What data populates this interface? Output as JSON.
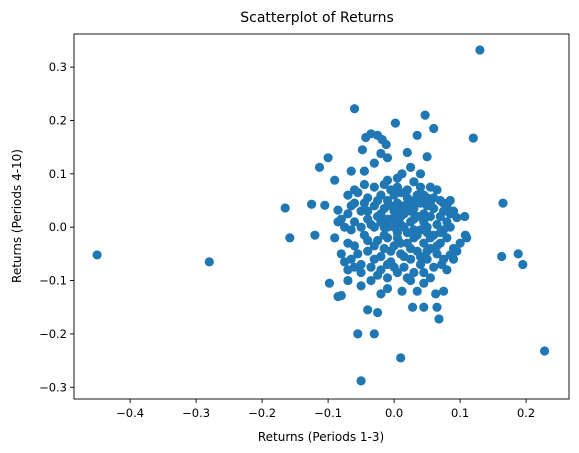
{
  "chart_data": {
    "type": "scatter",
    "title": "Scatterplot of Returns",
    "xlabel": "Returns (Periods 1-3)",
    "ylabel": "Returns (Periods 4-10)",
    "xlim": [
      -0.485,
      0.265
    ],
    "ylim": [
      -0.322,
      0.362
    ],
    "xticks": [
      -0.4,
      -0.3,
      -0.2,
      -0.1,
      0.0,
      0.1,
      0.2
    ],
    "yticks": [
      -0.3,
      -0.2,
      -0.1,
      0.0,
      0.1,
      0.2,
      0.3
    ],
    "xtick_labels": [
      "−0.4",
      "−0.3",
      "−0.2",
      "−0.1",
      "0.0",
      "0.1",
      "0.2"
    ],
    "ytick_labels": [
      "−0.3",
      "−0.2",
      "−0.1",
      "0.0",
      "0.1",
      "0.2",
      "0.3"
    ],
    "grid": false,
    "marker_color": "#1f77b4",
    "points": [
      [
        -0.45,
        -0.052
      ],
      [
        -0.28,
        -0.065
      ],
      [
        -0.165,
        0.036
      ],
      [
        -0.158,
        -0.02
      ],
      [
        0.13,
        0.332
      ],
      [
        0.228,
        -0.232
      ],
      [
        0.165,
        0.045
      ],
      [
        0.163,
        -0.055
      ],
      [
        0.188,
        -0.05
      ],
      [
        0.195,
        -0.07
      ],
      [
        0.12,
        0.167
      ],
      [
        0.108,
        -0.015
      ],
      [
        0.107,
        0.02
      ],
      [
        0.11,
        -0.02
      ],
      [
        -0.06,
        0.222
      ],
      [
        0.047,
        0.21
      ],
      [
        0.002,
        0.195
      ],
      [
        0.06,
        0.185
      ],
      [
        -0.043,
        0.168
      ],
      [
        -0.025,
        0.172
      ],
      [
        -0.035,
        0.175
      ],
      [
        -0.018,
        0.164
      ],
      [
        -0.012,
        0.155
      ],
      [
        0.035,
        0.172
      ],
      [
        -0.048,
        0.145
      ],
      [
        -0.02,
        0.138
      ],
      [
        -0.01,
        0.13
      ],
      [
        0.02,
        0.14
      ],
      [
        0.05,
        0.132
      ],
      [
        -0.1,
        0.13
      ],
      [
        -0.113,
        0.112
      ],
      [
        -0.045,
        0.105
      ],
      [
        0.025,
        0.112
      ],
      [
        -0.03,
        0.12
      ],
      [
        0.012,
        0.1
      ],
      [
        -0.065,
        0.105
      ],
      [
        0.04,
        0.1
      ],
      [
        -0.09,
        0.088
      ],
      [
        -0.01,
        0.088
      ],
      [
        0.005,
        0.092
      ],
      [
        0.03,
        0.085
      ],
      [
        -0.125,
        0.043
      ],
      [
        -0.105,
        0.041
      ],
      [
        -0.085,
        0.032
      ],
      [
        -0.12,
        -0.015
      ],
      [
        -0.098,
        -0.105
      ],
      [
        -0.085,
        -0.13
      ],
      [
        -0.08,
        -0.128
      ],
      [
        -0.07,
        -0.1
      ],
      [
        -0.055,
        -0.2
      ],
      [
        -0.05,
        -0.11
      ],
      [
        -0.04,
        -0.155
      ],
      [
        -0.03,
        -0.2
      ],
      [
        -0.025,
        -0.16
      ],
      [
        -0.02,
        -0.125
      ],
      [
        -0.01,
        -0.115
      ],
      [
        0.01,
        -0.245
      ],
      [
        -0.05,
        -0.288
      ],
      [
        0.012,
        -0.12
      ],
      [
        0.025,
        -0.1
      ],
      [
        0.035,
        -0.12
      ],
      [
        0.045,
        -0.105
      ],
      [
        0.045,
        -0.15
      ],
      [
        0.028,
        -0.15
      ],
      [
        0.065,
        -0.15
      ],
      [
        0.068,
        -0.172
      ],
      [
        0.063,
        -0.125
      ],
      [
        0.055,
        -0.095
      ],
      [
        0.075,
        -0.12
      ],
      [
        0.08,
        -0.08
      ],
      [
        0.085,
        -0.052
      ],
      [
        0.09,
        -0.04
      ],
      [
        0.09,
        -0.06
      ],
      [
        0.072,
        -0.07
      ],
      [
        0.08,
        0.04
      ],
      [
        0.085,
        0.025
      ],
      [
        0.095,
        0.018
      ],
      [
        0.07,
        0.05
      ],
      [
        0.055,
        0.075
      ],
      [
        0.065,
        0.07
      ],
      [
        0.045,
        0.06
      ],
      [
        -0.07,
        -0.08
      ],
      [
        -0.07,
        0.025
      ],
      [
        -0.07,
        -0.03
      ],
      [
        -0.065,
        -0.06
      ],
      [
        -0.06,
        -0.035
      ],
      [
        -0.06,
        0.01
      ],
      [
        -0.06,
        0.045
      ],
      [
        -0.055,
        0.065
      ],
      [
        -0.05,
        -0.07
      ],
      [
        -0.05,
        0.03
      ],
      [
        -0.045,
        -0.015
      ],
      [
        -0.045,
        0.08
      ],
      [
        -0.04,
        -0.045
      ],
      [
        -0.04,
        0.055
      ],
      [
        -0.035,
        -0.1
      ],
      [
        -0.035,
        0.005
      ],
      [
        -0.03,
        -0.06
      ],
      [
        -0.03,
        0.04
      ],
      [
        -0.03,
        0.075
      ],
      [
        -0.025,
        -0.025
      ],
      [
        -0.025,
        0.02
      ],
      [
        -0.02,
        -0.08
      ],
      [
        -0.02,
        0.06
      ],
      [
        -0.015,
        -0.04
      ],
      [
        -0.015,
        0.0
      ],
      [
        -0.015,
        0.035
      ],
      [
        -0.01,
        -0.095
      ],
      [
        -0.01,
        -0.02
      ],
      [
        -0.01,
        0.05
      ],
      [
        -0.005,
        -0.065
      ],
      [
        -0.005,
        0.015
      ],
      [
        -0.005,
        0.07
      ],
      [
        0.0,
        -0.035
      ],
      [
        0.0,
        0.03
      ],
      [
        0.005,
        -0.085
      ],
      [
        0.005,
        -0.01
      ],
      [
        0.005,
        0.045
      ],
      [
        0.01,
        -0.05
      ],
      [
        0.01,
        0.02
      ],
      [
        0.01,
        0.065
      ],
      [
        0.015,
        -0.075
      ],
      [
        0.015,
        0.0
      ],
      [
        0.015,
        0.04
      ],
      [
        0.02,
        -0.03
      ],
      [
        0.02,
        0.055
      ],
      [
        0.025,
        -0.06
      ],
      [
        0.025,
        0.01
      ],
      [
        0.03,
        -0.085
      ],
      [
        0.03,
        -0.02
      ],
      [
        0.03,
        0.035
      ],
      [
        0.035,
        -0.045
      ],
      [
        0.035,
        0.02
      ],
      [
        0.035,
        0.06
      ],
      [
        0.04,
        -0.07
      ],
      [
        0.04,
        -0.005
      ],
      [
        0.04,
        0.045
      ],
      [
        0.045,
        -0.03
      ],
      [
        0.045,
        0.025
      ],
      [
        0.05,
        -0.06
      ],
      [
        0.05,
        0.0
      ],
      [
        0.05,
        0.04
      ],
      [
        0.055,
        -0.04
      ],
      [
        0.055,
        0.02
      ],
      [
        0.06,
        -0.075
      ],
      [
        0.06,
        -0.015
      ],
      [
        0.06,
        0.035
      ],
      [
        0.065,
        -0.05
      ],
      [
        0.065,
        0.005
      ],
      [
        0.07,
        -0.03
      ],
      [
        0.07,
        0.02
      ],
      [
        0.075,
        -0.06
      ],
      [
        0.075,
        -0.005
      ],
      [
        0.075,
        0.03
      ],
      [
        0.08,
        -0.02
      ],
      [
        0.085,
        0.0
      ],
      [
        -0.075,
        0.0
      ],
      [
        -0.065,
        0.04
      ],
      [
        -0.055,
        -0.05
      ],
      [
        -0.05,
        -0.085
      ],
      [
        -0.04,
        0.015
      ],
      [
        -0.035,
        -0.075
      ],
      [
        -0.03,
        0.0
      ],
      [
        -0.025,
        0.05
      ],
      [
        -0.02,
        -0.055
      ],
      [
        -0.02,
        0.01
      ],
      [
        -0.015,
        0.08
      ],
      [
        -0.01,
        -0.07
      ],
      [
        -0.005,
        -0.045
      ],
      [
        -0.005,
        0.04
      ],
      [
        0.0,
        0.0
      ],
      [
        0.0,
        -0.075
      ],
      [
        0.005,
        0.075
      ],
      [
        0.01,
        -0.03
      ],
      [
        0.015,
        0.025
      ],
      [
        0.02,
        -0.095
      ],
      [
        0.02,
        0.07
      ],
      [
        0.025,
        -0.04
      ],
      [
        0.03,
        0.05
      ],
      [
        0.035,
        -0.015
      ],
      [
        0.04,
        0.075
      ],
      [
        0.045,
        -0.085
      ],
      [
        0.05,
        0.055
      ],
      [
        0.055,
        -0.02
      ],
      [
        0.06,
        0.055
      ],
      [
        -0.08,
        -0.05
      ],
      [
        -0.08,
        0.015
      ],
      [
        -0.045,
        0.045
      ],
      [
        -0.04,
        -0.025
      ],
      [
        -0.025,
        -0.09
      ],
      [
        -0.015,
        -0.015
      ],
      [
        -0.01,
        0.015
      ],
      [
        0.0,
        0.06
      ],
      [
        0.005,
        -0.02
      ],
      [
        0.01,
        0.005
      ],
      [
        0.015,
        -0.055
      ],
      [
        0.02,
        0.04
      ],
      [
        0.025,
        0.03
      ],
      [
        0.03,
        -0.005
      ],
      [
        0.04,
        -0.055
      ],
      [
        0.045,
        0.01
      ],
      [
        0.05,
        -0.045
      ],
      [
        0.055,
        0.045
      ],
      [
        0.065,
        -0.035
      ],
      [
        0.07,
        -0.01
      ],
      [
        -0.06,
        -0.075
      ],
      [
        -0.05,
        0.0
      ],
      [
        -0.04,
        0.03
      ],
      [
        -0.03,
        -0.035
      ],
      [
        -0.02,
        0.025
      ],
      [
        -0.01,
        0.0
      ],
      [
        0.0,
        0.015
      ],
      [
        0.01,
        0.035
      ],
      [
        0.02,
        -0.01
      ],
      [
        0.03,
        0.015
      ],
      [
        0.04,
        0.02
      ],
      [
        0.05,
        -0.01
      ],
      [
        -0.09,
        -0.02
      ],
      [
        -0.085,
        0.01
      ],
      [
        -0.075,
        -0.065
      ],
      [
        -0.07,
        0.06
      ],
      [
        -0.065,
        -0.005
      ],
      [
        -0.06,
        0.07
      ],
      [
        0.08,
        0.01
      ],
      [
        0.09,
        0.03
      ],
      [
        0.095,
        -0.045
      ],
      [
        0.1,
        -0.03
      ],
      [
        0.085,
        0.05
      ],
      [
        0.075,
        0.045
      ]
    ]
  }
}
